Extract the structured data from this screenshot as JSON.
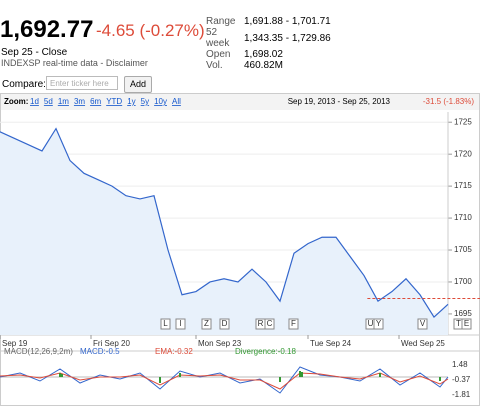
{
  "quote": {
    "price": "1,692.77",
    "change": "-4.65 (-0.27%)",
    "date": "Sep 25 - Close",
    "source": "INDEXSP real-time data - Disclaimer"
  },
  "stats": [
    [
      "Range",
      "1,691.88 - 1,701.71"
    ],
    [
      "52 week",
      "1,343.35 - 1,729.86"
    ],
    [
      "Open",
      "1,698.02"
    ],
    [
      "Vol.",
      "460.82M"
    ]
  ],
  "compare": {
    "label": "Compare:",
    "placeholder": "Enter ticker here",
    "button": "Add"
  },
  "zoom": {
    "label": "Zoom:",
    "options": [
      "1d",
      "5d",
      "1m",
      "3m",
      "6m",
      "YTD",
      "1y",
      "5y",
      "10y",
      "All"
    ],
    "range": "Sep 19, 2013 - Sep 25, 2013",
    "change": "-31.5 (-1.83%)"
  },
  "chart_data": {
    "type": "line",
    "color": "#3366cc",
    "values": [
      1723.5,
      1722.5,
      1721.5,
      1720.5,
      1724,
      1719,
      1717,
      1716,
      1715,
      1713.5,
      1713,
      1713.5,
      1705,
      1698,
      1698.5,
      1700,
      1700.5,
      1700,
      1702,
      1700,
      1697,
      1704.5,
      1706,
      1707,
      1707,
      1704,
      1701,
      1697,
      1698.5,
      1700.5,
      1698,
      1694.5,
      1696.5
    ],
    "previous_close": 1697.42,
    "xlim": [
      0,
      32
    ],
    "ylim": [
      1691.7,
      1726.6
    ],
    "yticks": [
      1695,
      1700,
      1705,
      1710,
      1715,
      1720,
      1725
    ],
    "xticks": [
      {
        "value": 0,
        "label": "Sep 19"
      },
      {
        "value": 6.5,
        "label": "Fri Sep 20"
      },
      {
        "value": 14,
        "label": "Mon Sep 23"
      },
      {
        "value": 22,
        "label": "Tue Sep 24"
      },
      {
        "value": 28.5,
        "label": "Wed Sep 25"
      }
    ],
    "events": [
      "L",
      "I",
      "Z",
      "D",
      "R",
      "C",
      "F",
      "U",
      "Y",
      "V",
      "T",
      "E"
    ]
  },
  "macd": {
    "title": "MACD(12,26,9,2m)",
    "macd": "MACD:-0.5",
    "ema": "EMA:-0.32",
    "divergence": "Divergence:-0.18",
    "ticks": [
      "1.48",
      "-0.37",
      "-1.81"
    ]
  }
}
